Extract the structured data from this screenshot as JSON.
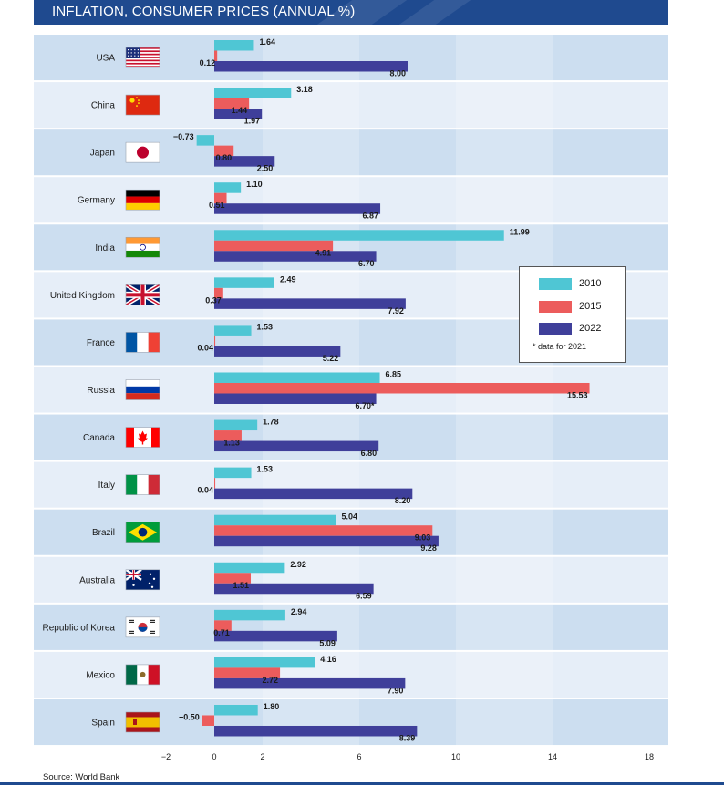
{
  "chart_data": {
    "type": "bar",
    "orientation": "horizontal",
    "title": "INFLATION, CONSUMER PRICES (ANNUAL %)",
    "categories": [
      "USA",
      "China",
      "Japan",
      "Germany",
      "India",
      "United Kingdom",
      "France",
      "Russia",
      "Canada",
      "Italy",
      "Brazil",
      "Australia",
      "Republic of Korea",
      "Mexico",
      "Spain"
    ],
    "series": [
      {
        "name": "2010",
        "color": "#4fc6d4",
        "values": [
          1.64,
          3.18,
          -0.73,
          1.1,
          11.99,
          2.49,
          1.53,
          6.85,
          1.78,
          1.53,
          5.04,
          2.92,
          2.94,
          4.16,
          1.8
        ],
        "labels": [
          "1.64",
          "3.18",
          "−0.73",
          "1.10",
          "11.99",
          "2.49",
          "1.53",
          "6.85",
          "1.78",
          "1.53",
          "5.04",
          "2.92",
          "2.94",
          "4.16",
          "1.80"
        ]
      },
      {
        "name": "2015",
        "color": "#ec5c5c",
        "values": [
          0.12,
          1.44,
          0.8,
          0.51,
          4.91,
          0.37,
          0.04,
          15.53,
          1.13,
          0.04,
          9.03,
          1.51,
          0.71,
          2.72,
          -0.5
        ],
        "labels": [
          "0.12",
          "1.44",
          "0.80",
          "0.51",
          "4.91",
          "0.37",
          "0.04",
          "15.53",
          "1.13",
          "0.04",
          "9.03",
          "1.51",
          "0.71",
          "2.72",
          "−0.50"
        ]
      },
      {
        "name": "2022",
        "color": "#3f3f9a",
        "values": [
          8.0,
          1.97,
          2.5,
          6.87,
          6.7,
          7.92,
          5.22,
          6.7,
          6.8,
          8.2,
          9.28,
          6.59,
          5.09,
          7.9,
          8.39
        ],
        "labels": [
          "8.00",
          "1.97",
          "2.50",
          "6.87",
          "6.70",
          "7.92",
          "5.22",
          "6.70*",
          "6.80",
          "8.20",
          "9.28",
          "6.59",
          "5.09",
          "7.90",
          "8.39"
        ]
      }
    ],
    "xticks": [
      -2,
      0,
      2,
      6,
      10,
      14,
      18
    ],
    "xtick_labels": [
      "−2",
      "0",
      "2",
      "6",
      "10",
      "14",
      "18"
    ],
    "xlim": [
      -2,
      18
    ],
    "legend_position": "right",
    "legend_note": "* data for 2021",
    "source": "Source: World Bank"
  },
  "flags": [
    "usa-flag",
    "china-flag",
    "japan-flag",
    "germany-flag",
    "india-flag",
    "uk-flag",
    "france-flag",
    "russia-flag",
    "canada-flag",
    "italy-flag",
    "brazil-flag",
    "australia-flag",
    "korea-flag",
    "mexico-flag",
    "spain-flag"
  ]
}
